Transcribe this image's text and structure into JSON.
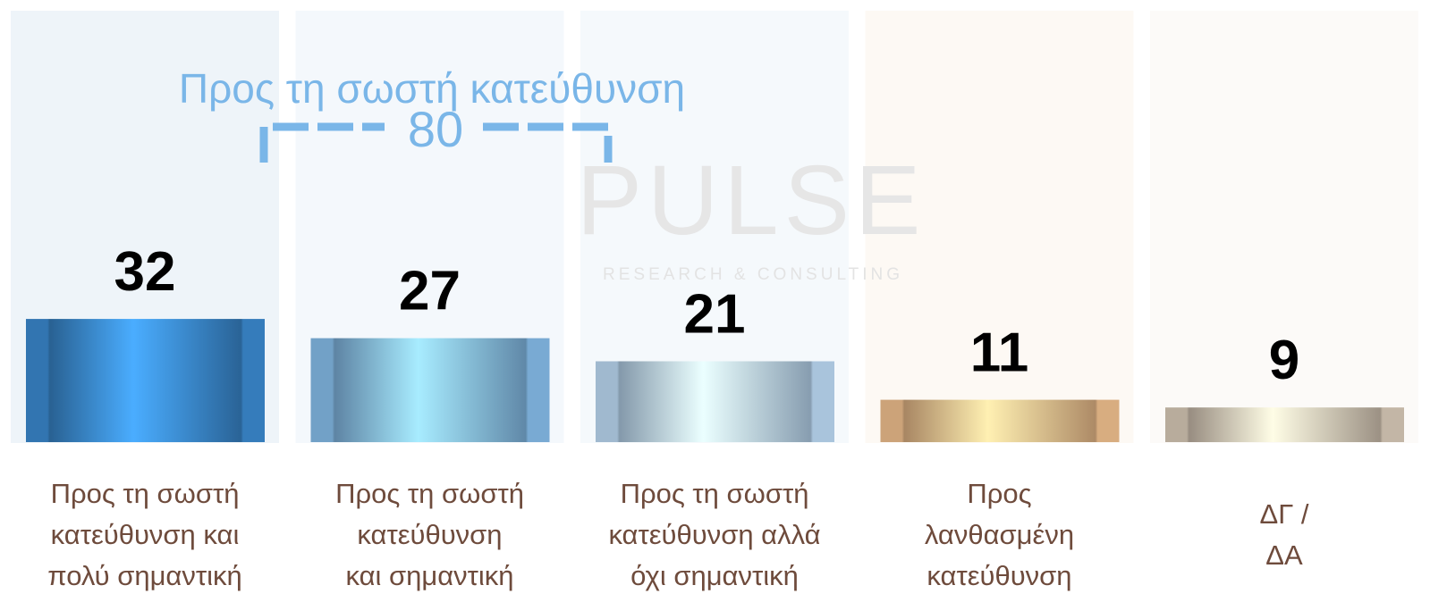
{
  "chart_data": {
    "type": "bar",
    "categories": [
      "Προς τη σωστή\nκατεύθυνση και\nπολύ σημαντική",
      "Προς τη σωστή\nκατεύθυνση\nκαι σημαντική",
      "Προς τη σωστή\nκατεύθυνση αλλά\nόχι σημαντική",
      "Προς\nλανθασμένη\nκατεύθυνση",
      "ΔΓ /\nΔΑ"
    ],
    "values": [
      32,
      27,
      21,
      11,
      9
    ],
    "colors": [
      "#3b8ad0",
      "#86bdea",
      "#bcdaf4",
      "#f0c08e",
      "#d9cab8"
    ],
    "backgrounds": [
      "#eef4f9",
      "#f4f8fc",
      "#f5f9fc",
      "#fdf9f4",
      "#fcfaf8"
    ],
    "annotation": {
      "text": "Προς τη σωστή κατεύθυνση",
      "value": 80,
      "color": "#7ab6e8"
    },
    "watermark": {
      "title": "PULSE",
      "subtitle": "RESEARCH & CONSULTING"
    }
  }
}
